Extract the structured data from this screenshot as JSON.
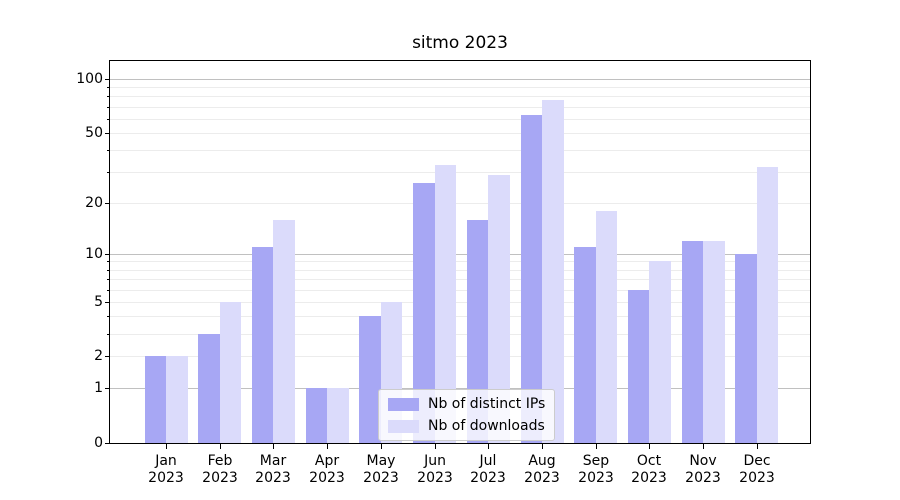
{
  "chart_data": {
    "type": "bar",
    "title": "sitmo 2023",
    "year_label": "2023",
    "categories": [
      "Jan",
      "Feb",
      "Mar",
      "Apr",
      "May",
      "Jun",
      "Jul",
      "Aug",
      "Sep",
      "Oct",
      "Nov",
      "Dec"
    ],
    "series": [
      {
        "name": "Nb of distinct IPs",
        "color": "#a7a7f4",
        "values": [
          2,
          3,
          11,
          1,
          4,
          26,
          16,
          63,
          11,
          6,
          12,
          10
        ]
      },
      {
        "name": "Nb of downloads",
        "color": "#dbdbfb",
        "values": [
          2,
          5,
          16,
          1,
          5,
          33,
          29,
          76,
          18,
          9,
          12,
          32
        ]
      }
    ],
    "yscale": "log1p",
    "ylim": [
      0,
      126
    ],
    "ytick_values": [
      0,
      1,
      2,
      5,
      10,
      20,
      50,
      100
    ],
    "ytick_labels": [
      "0",
      "1",
      "2",
      "5",
      "10",
      "20",
      "50",
      "100"
    ],
    "grid": "horizontal",
    "legend_position": "lower-center-left"
  },
  "colors": {
    "grid_minor": "#ececec",
    "grid_major": "#c0c0c0",
    "axis": "#000000",
    "legend_border": "#cccccc"
  }
}
